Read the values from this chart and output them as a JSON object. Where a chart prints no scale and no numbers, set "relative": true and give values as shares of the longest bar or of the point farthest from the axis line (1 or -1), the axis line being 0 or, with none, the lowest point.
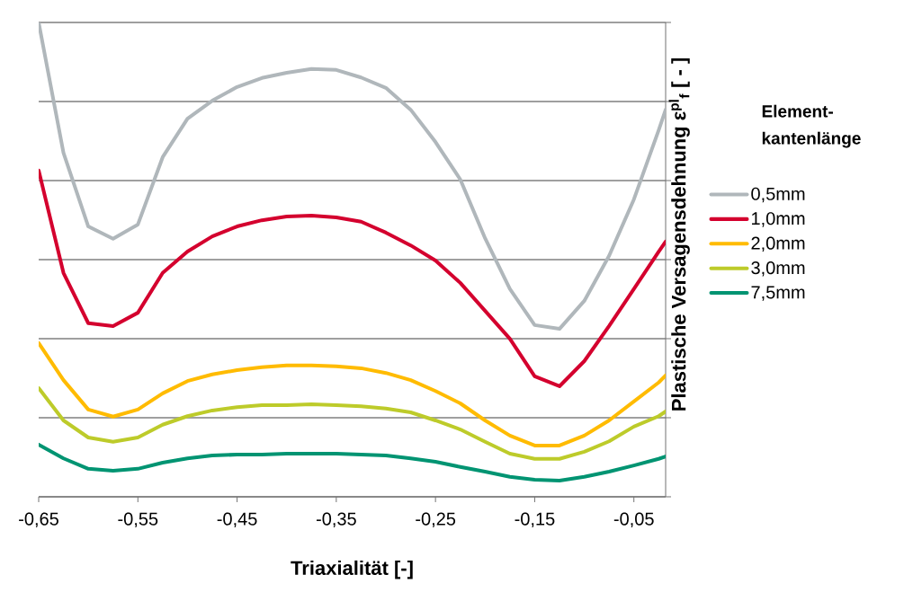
{
  "chart_data": {
    "type": "line",
    "relative": true,
    "xlabel": "Triaxialität [-]",
    "ylabel": "Plastische Versagensdehnung ε$^{pl}$$_{f}$ [ - ]",
    "legend_title": "Element-kantenlänge",
    "legend": "right",
    "grid": "y",
    "line_style": "solid",
    "xlim": [
      -0.65,
      -0.018
    ],
    "xticks": [
      {
        "value": -0.65,
        "label": "-0,65"
      },
      {
        "value": -0.55,
        "label": "-0,55"
      },
      {
        "value": -0.45,
        "label": "-0,45"
      },
      {
        "value": -0.35,
        "label": "-0,35"
      },
      {
        "value": -0.25,
        "label": "-0,25"
      },
      {
        "value": -0.15,
        "label": "-0,15"
      },
      {
        "value": -0.05,
        "label": "-0,05"
      }
    ],
    "x": [
      -0.65,
      -0.625,
      -0.6,
      -0.575,
      -0.55,
      -0.525,
      -0.5,
      -0.475,
      -0.45,
      -0.425,
      -0.4,
      -0.375,
      -0.35,
      -0.325,
      -0.3,
      -0.275,
      -0.25,
      -0.225,
      -0.2,
      -0.175,
      -0.15,
      -0.125,
      -0.1,
      -0.075,
      -0.05,
      -0.025,
      -0.018
    ],
    "series": [
      {
        "name": "0,5mm",
        "color": "#b0b7bb",
        "values": [
          1.0,
          0.725,
          0.57,
          0.544,
          0.574,
          0.716,
          0.797,
          0.835,
          0.864,
          0.883,
          0.894,
          0.902,
          0.9,
          0.884,
          0.862,
          0.816,
          0.748,
          0.669,
          0.545,
          0.438,
          0.362,
          0.354,
          0.413,
          0.508,
          0.627,
          0.773,
          0.816
        ]
      },
      {
        "name": "1,0mm",
        "color": "#d4002e",
        "values": [
          0.688,
          0.472,
          0.366,
          0.36,
          0.388,
          0.472,
          0.517,
          0.549,
          0.57,
          0.583,
          0.591,
          0.593,
          0.589,
          0.58,
          0.557,
          0.53,
          0.498,
          0.451,
          0.392,
          0.333,
          0.254,
          0.233,
          0.286,
          0.36,
          0.438,
          0.517,
          0.538
        ]
      },
      {
        "name": "2,0mm",
        "color": "#ffbb00",
        "values": [
          0.324,
          0.246,
          0.184,
          0.169,
          0.184,
          0.218,
          0.244,
          0.258,
          0.267,
          0.273,
          0.277,
          0.277,
          0.275,
          0.271,
          0.261,
          0.246,
          0.223,
          0.197,
          0.161,
          0.129,
          0.108,
          0.108,
          0.129,
          0.161,
          0.201,
          0.241,
          0.256
        ]
      },
      {
        "name": "3,0mm",
        "color": "#bdcb2a",
        "values": [
          0.229,
          0.161,
          0.125,
          0.116,
          0.125,
          0.152,
          0.17,
          0.182,
          0.189,
          0.193,
          0.193,
          0.195,
          0.193,
          0.191,
          0.186,
          0.178,
          0.161,
          0.142,
          0.116,
          0.091,
          0.08,
          0.08,
          0.095,
          0.117,
          0.148,
          0.17,
          0.18
        ]
      },
      {
        "name": "7,5mm",
        "color": "#009472",
        "values": [
          0.11,
          0.081,
          0.059,
          0.055,
          0.059,
          0.072,
          0.081,
          0.087,
          0.089,
          0.089,
          0.091,
          0.091,
          0.091,
          0.089,
          0.087,
          0.081,
          0.074,
          0.063,
          0.053,
          0.042,
          0.036,
          0.034,
          0.042,
          0.053,
          0.066,
          0.08,
          0.085
        ]
      }
    ]
  }
}
